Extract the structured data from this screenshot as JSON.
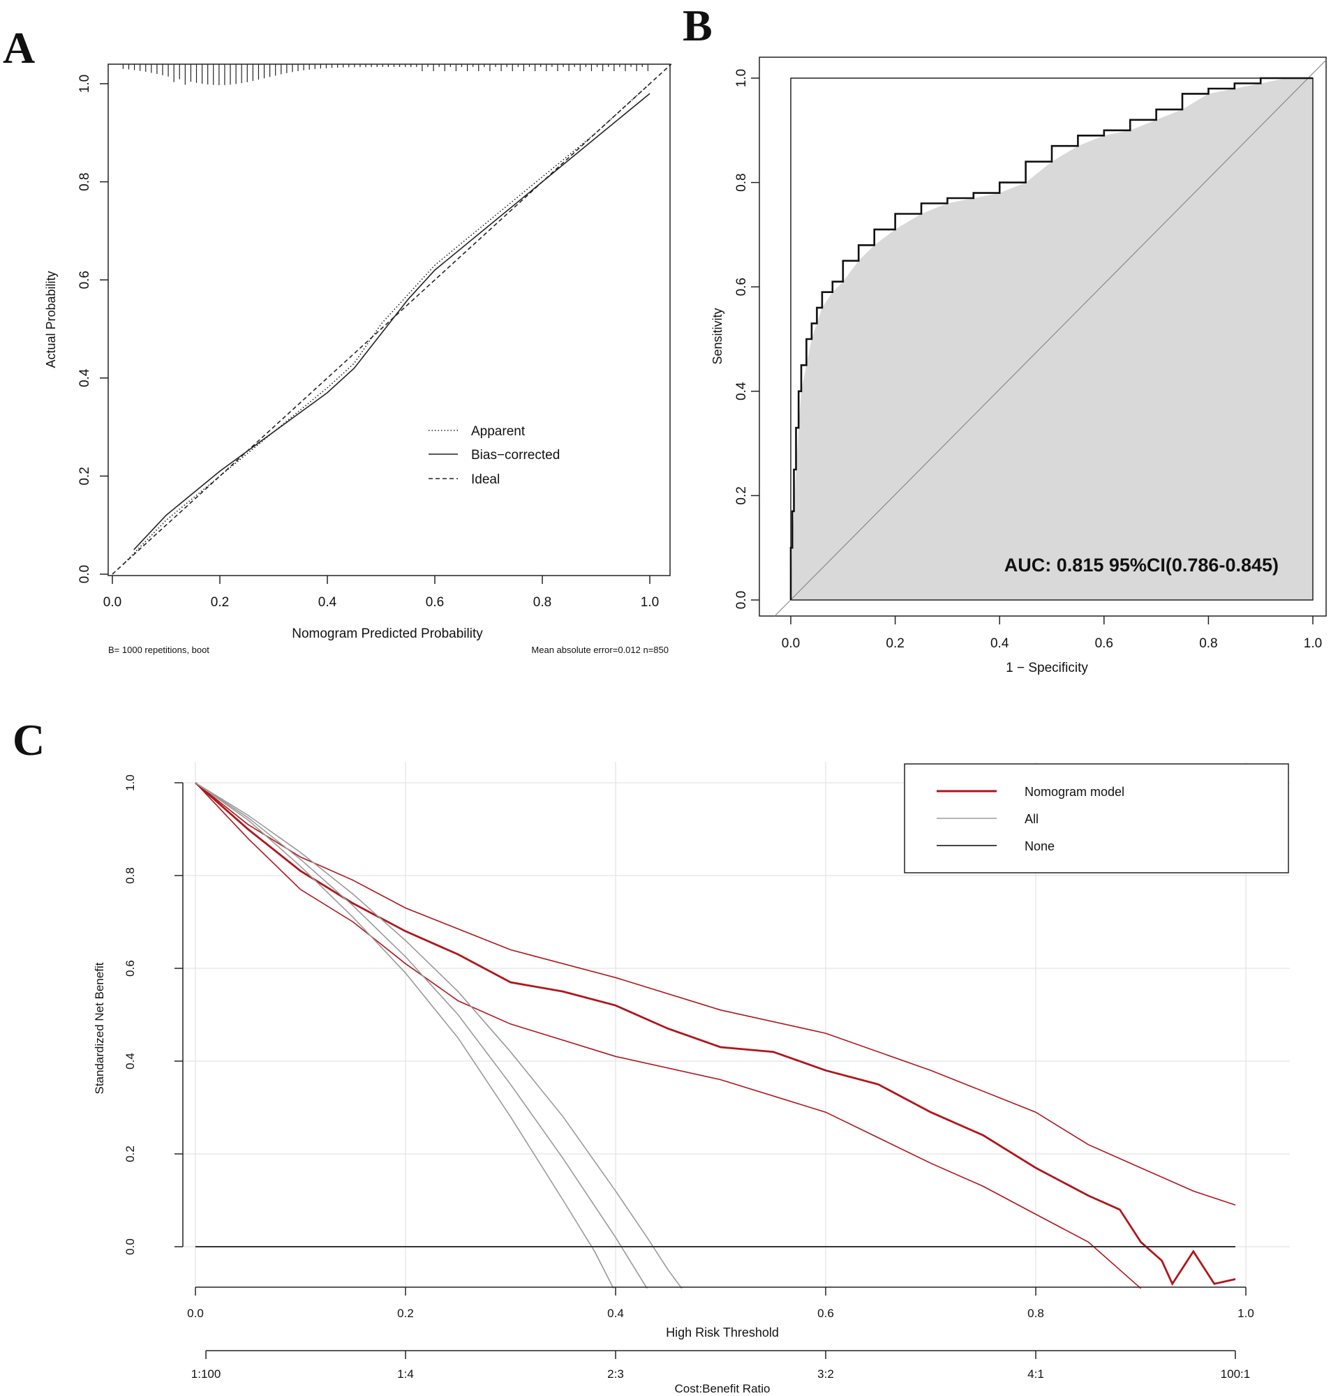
{
  "chart_data": [
    {
      "panel": "A",
      "type": "line",
      "title": "",
      "xlabel": "Nomogram Predicted Probability",
      "ylabel": "Actual Probability",
      "xlim": [
        0,
        1.04
      ],
      "ylim": [
        0,
        1.04
      ],
      "xticks": [
        "0.0",
        "0.2",
        "0.4",
        "0.6",
        "0.8",
        "1.0"
      ],
      "yticks": [
        "0.0",
        "0.2",
        "0.4",
        "0.6",
        "0.8",
        "1.0"
      ],
      "footnote_left": "B= 1000 repetitions, boot",
      "footnote_right": "Mean absolute error=0.012 n=850",
      "legend": [
        "Apparent",
        "Bias−corrected",
        "Ideal"
      ],
      "series": [
        {
          "name": "Apparent",
          "style": "dotted",
          "x": [
            0.02,
            0.1,
            0.2,
            0.3,
            0.4,
            0.45,
            0.5,
            0.55,
            0.6,
            0.7,
            0.8,
            0.9,
            1.0
          ],
          "y": [
            0.02,
            0.11,
            0.2,
            0.29,
            0.38,
            0.43,
            0.51,
            0.57,
            0.63,
            0.72,
            0.81,
            0.9,
            1.0
          ]
        },
        {
          "name": "Bias−corrected",
          "style": "solid",
          "x": [
            0.04,
            0.1,
            0.2,
            0.3,
            0.4,
            0.45,
            0.5,
            0.55,
            0.6,
            0.7,
            0.8,
            0.9,
            1.0
          ],
          "y": [
            0.05,
            0.12,
            0.21,
            0.29,
            0.37,
            0.42,
            0.49,
            0.56,
            0.62,
            0.71,
            0.8,
            0.89,
            0.98
          ]
        },
        {
          "name": "Ideal",
          "style": "dashed",
          "x": [
            0,
            1.04
          ],
          "y": [
            0,
            1.04
          ]
        }
      ]
    },
    {
      "panel": "B",
      "type": "line",
      "title": "",
      "xlabel": "1 − Specificity",
      "ylabel": "Sensitivity",
      "xlim": [
        0,
        1
      ],
      "ylim": [
        0,
        1
      ],
      "xticks": [
        "0.0",
        "0.2",
        "0.4",
        "0.6",
        "0.8",
        "1.0"
      ],
      "yticks": [
        "0.0",
        "0.2",
        "0.4",
        "0.6",
        "0.8",
        "1.0"
      ],
      "annotation": "AUC: 0.815  95%CI(0.786-0.845)",
      "series": [
        {
          "name": "ROC",
          "x": [
            0,
            0.003,
            0.006,
            0.01,
            0.015,
            0.02,
            0.03,
            0.04,
            0.05,
            0.06,
            0.08,
            0.1,
            0.13,
            0.16,
            0.2,
            0.25,
            0.3,
            0.35,
            0.4,
            0.45,
            0.5,
            0.55,
            0.6,
            0.65,
            0.7,
            0.75,
            0.8,
            0.85,
            0.9,
            0.95,
            1.0
          ],
          "y": [
            0,
            0.1,
            0.17,
            0.25,
            0.33,
            0.4,
            0.45,
            0.5,
            0.53,
            0.56,
            0.59,
            0.61,
            0.65,
            0.68,
            0.71,
            0.74,
            0.76,
            0.77,
            0.78,
            0.8,
            0.84,
            0.87,
            0.89,
            0.9,
            0.92,
            0.94,
            0.97,
            0.98,
            0.99,
            1.0,
            1.0
          ]
        },
        {
          "name": "Reference",
          "x": [
            0,
            1
          ],
          "y": [
            0,
            1
          ]
        }
      ]
    },
    {
      "panel": "C",
      "type": "line",
      "title": "",
      "xlabel": "High Risk Threshold",
      "ylabel": "Standardized Net Benefit",
      "x2label": "Cost:Benefit Ratio",
      "xlim": [
        0,
        1
      ],
      "ylim": [
        -0.09,
        1.0
      ],
      "xticks": [
        "0.0",
        "0.2",
        "0.4",
        "0.6",
        "0.8",
        "1.0"
      ],
      "yticks": [
        "0.0",
        "0.2",
        "0.4",
        "0.6",
        "0.8",
        "1.0"
      ],
      "x2ticks": [
        "1:100",
        "1:4",
        "2:3",
        "3:2",
        "4:1",
        "100:1"
      ],
      "legend": [
        "Nomogram model",
        "All",
        "None"
      ],
      "series": [
        {
          "name": "Nomogram model",
          "color": "#b0151b",
          "x": [
            0,
            0.05,
            0.1,
            0.15,
            0.2,
            0.25,
            0.3,
            0.35,
            0.4,
            0.45,
            0.5,
            0.55,
            0.6,
            0.65,
            0.7,
            0.75,
            0.8,
            0.85,
            0.88,
            0.9,
            0.92,
            0.93,
            0.95,
            0.97,
            0.99
          ],
          "y": [
            1.0,
            0.9,
            0.81,
            0.74,
            0.68,
            0.63,
            0.57,
            0.55,
            0.52,
            0.47,
            0.43,
            0.42,
            0.38,
            0.35,
            0.29,
            0.24,
            0.17,
            0.11,
            0.08,
            0.01,
            -0.03,
            -0.08,
            -0.01,
            -0.08,
            -0.07
          ]
        },
        {
          "name": "Nomogram upper CI",
          "color": "#b0151b",
          "x": [
            0,
            0.05,
            0.1,
            0.15,
            0.2,
            0.3,
            0.4,
            0.5,
            0.6,
            0.7,
            0.8,
            0.85,
            0.9,
            0.95,
            0.99
          ],
          "y": [
            1.0,
            0.91,
            0.84,
            0.79,
            0.73,
            0.64,
            0.58,
            0.51,
            0.46,
            0.38,
            0.29,
            0.22,
            0.17,
            0.12,
            0.09
          ]
        },
        {
          "name": "Nomogram lower CI",
          "color": "#b0151b",
          "x": [
            0,
            0.05,
            0.1,
            0.15,
            0.2,
            0.25,
            0.3,
            0.4,
            0.5,
            0.6,
            0.7,
            0.75,
            0.8,
            0.85,
            0.9
          ],
          "y": [
            1.0,
            0.88,
            0.77,
            0.7,
            0.61,
            0.53,
            0.48,
            0.41,
            0.36,
            0.29,
            0.18,
            0.13,
            0.07,
            0.01,
            -0.09
          ]
        },
        {
          "name": "All",
          "color": "#9a9a9a",
          "x": [
            0,
            0.05,
            0.1,
            0.15,
            0.2,
            0.25,
            0.3,
            0.35,
            0.4,
            0.43,
            0.45,
            0.463
          ],
          "y": [
            1.0,
            0.93,
            0.85,
            0.76,
            0.66,
            0.55,
            0.42,
            0.28,
            0.12,
            0.02,
            -0.05,
            -0.09
          ]
        },
        {
          "name": "All lower",
          "color": "#9a9a9a",
          "x": [
            0,
            0.05,
            0.1,
            0.15,
            0.2,
            0.25,
            0.3,
            0.35,
            0.38,
            0.398
          ],
          "y": [
            1.0,
            0.92,
            0.82,
            0.71,
            0.59,
            0.45,
            0.28,
            0.1,
            -0.01,
            -0.09
          ]
        },
        {
          "name": "All mid",
          "color": "#9a9a9a",
          "x": [
            0,
            0.05,
            0.1,
            0.15,
            0.2,
            0.25,
            0.3,
            0.35,
            0.4,
            0.43
          ],
          "y": [
            1.0,
            0.925,
            0.835,
            0.735,
            0.625,
            0.5,
            0.35,
            0.19,
            0.02,
            -0.09
          ]
        },
        {
          "name": "None",
          "color": "#333333",
          "x": [
            0,
            0.99
          ],
          "y": [
            0,
            0
          ]
        }
      ]
    }
  ],
  "panels": {
    "a": "A",
    "b": "B",
    "c": "C"
  }
}
